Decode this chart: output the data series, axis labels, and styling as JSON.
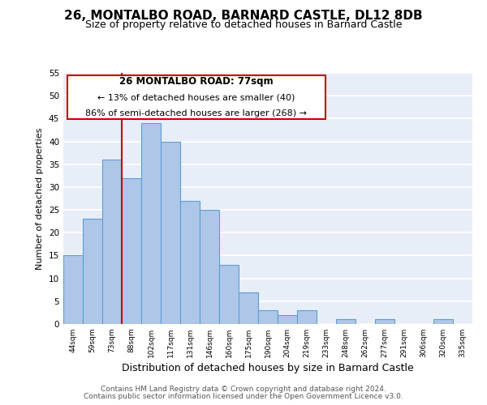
{
  "title": "26, MONTALBO ROAD, BARNARD CASTLE, DL12 8DB",
  "subtitle": "Size of property relative to detached houses in Barnard Castle",
  "xlabel": "Distribution of detached houses by size in Barnard Castle",
  "ylabel": "Number of detached properties",
  "bin_labels": [
    "44sqm",
    "59sqm",
    "73sqm",
    "88sqm",
    "102sqm",
    "117sqm",
    "131sqm",
    "146sqm",
    "160sqm",
    "175sqm",
    "190sqm",
    "204sqm",
    "219sqm",
    "233sqm",
    "248sqm",
    "262sqm",
    "277sqm",
    "291sqm",
    "306sqm",
    "320sqm",
    "335sqm"
  ],
  "bar_values": [
    15,
    23,
    36,
    32,
    44,
    40,
    27,
    25,
    13,
    7,
    3,
    2,
    3,
    0,
    1,
    0,
    1,
    0,
    0,
    1,
    0
  ],
  "bar_color": "#aec6e8",
  "bar_edge_color": "#5a9fd4",
  "ylim": [
    0,
    55
  ],
  "yticks": [
    0,
    5,
    10,
    15,
    20,
    25,
    30,
    35,
    40,
    45,
    50,
    55
  ],
  "property_line_color": "#cc0000",
  "annotation_line1": "26 MONTALBO ROAD: 77sqm",
  "annotation_line2": "← 13% of detached houses are smaller (40)",
  "annotation_line3": "86% of semi-detached houses are larger (268) →",
  "annotation_box_color": "#cc0000",
  "footer_line1": "Contains HM Land Registry data © Crown copyright and database right 2024.",
  "footer_line2": "Contains public sector information licensed under the Open Government Licence v3.0.",
  "background_color": "#e8eef8",
  "grid_color": "#ffffff",
  "title_fontsize": 11,
  "subtitle_fontsize": 9,
  "xlabel_fontsize": 9,
  "ylabel_fontsize": 8,
  "annotation_fontsize": 8.5,
  "footer_fontsize": 6.5
}
